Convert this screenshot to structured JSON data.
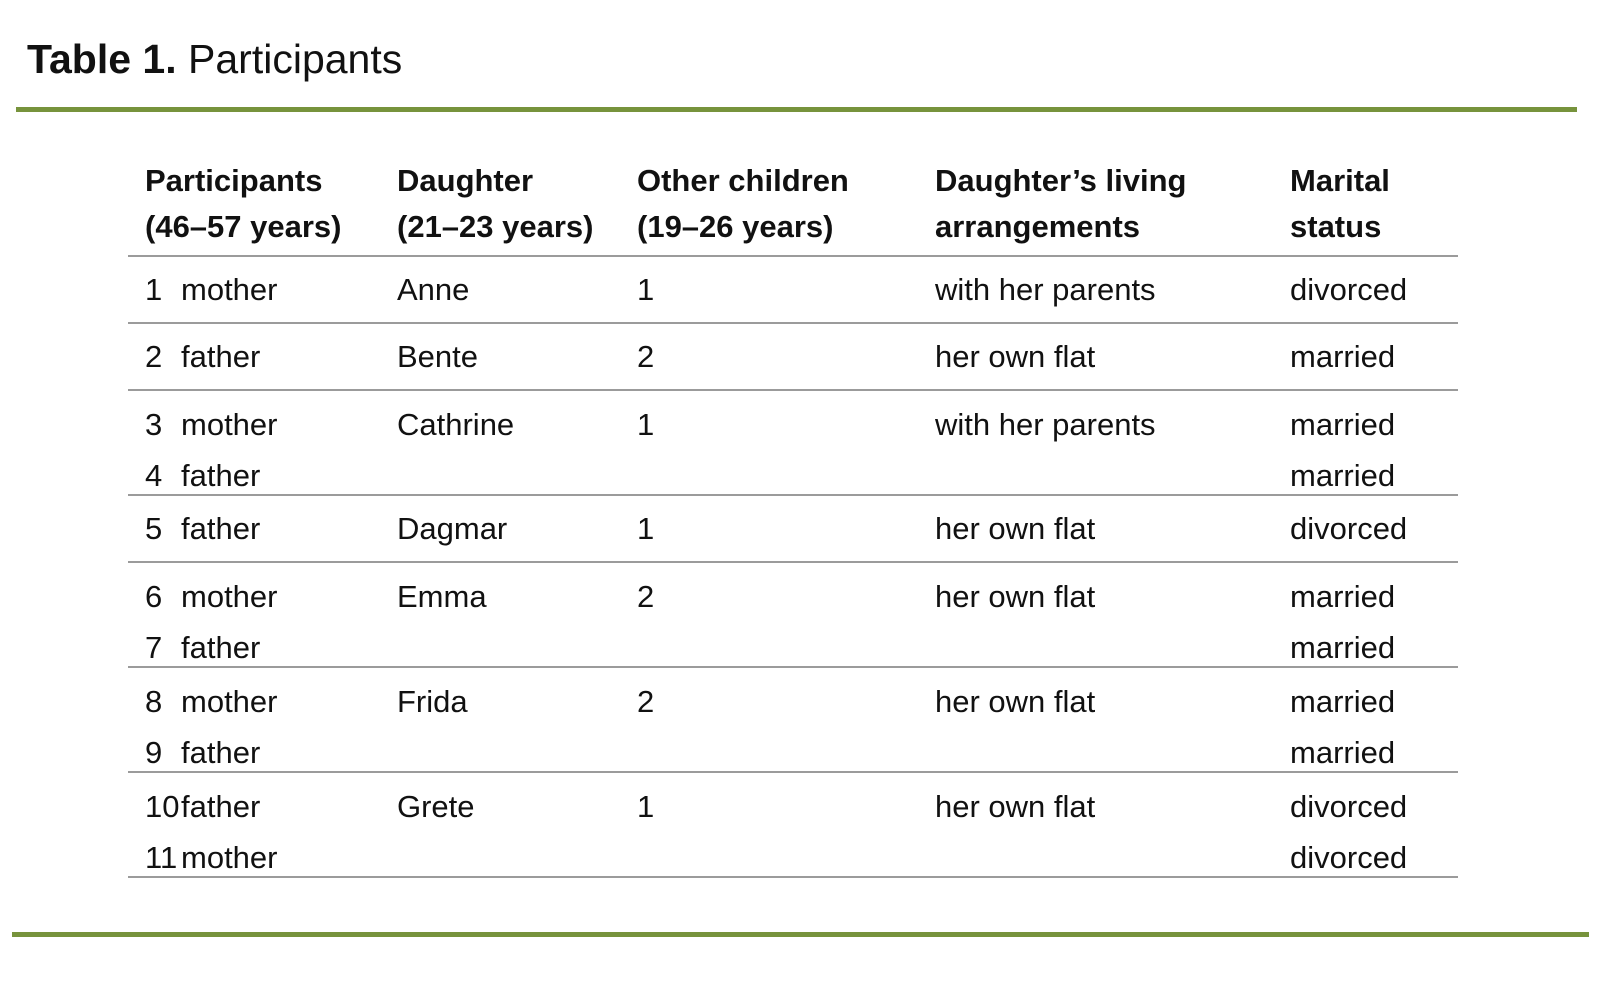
{
  "title": {
    "bold": "Table 1.",
    "rest": " Participants"
  },
  "colors": {
    "accent": "#77933C",
    "grid_line": "#9b9b9b"
  },
  "table": {
    "columns": [
      {
        "line1": "Participants",
        "line2": "(46–57 years)"
      },
      {
        "line1": "Daughter",
        "line2": "(21–23 years)"
      },
      {
        "line1": "Other children",
        "line2": "(19–26 years)"
      },
      {
        "line1": "Daughter’s living",
        "line2": "arrangements"
      },
      {
        "line1": "Marital",
        "line2": "status"
      }
    ],
    "groups": [
      {
        "daughter": "Anne",
        "other_children": "1",
        "living": "with her parents",
        "rows": [
          {
            "num": "1",
            "role": "mother",
            "marital": "divorced"
          }
        ]
      },
      {
        "daughter": "Bente",
        "other_children": "2",
        "living": "her own flat",
        "rows": [
          {
            "num": "2",
            "role": "father",
            "marital": "married"
          }
        ]
      },
      {
        "daughter": "Cathrine",
        "other_children": "1",
        "living": "with her parents",
        "rows": [
          {
            "num": "3",
            "role": "mother",
            "marital": "married"
          },
          {
            "num": "4",
            "role": "father",
            "marital": "married"
          }
        ]
      },
      {
        "daughter": "Dagmar",
        "other_children": "1",
        "living": "her own flat",
        "rows": [
          {
            "num": "5",
            "role": "father",
            "marital": "divorced"
          }
        ]
      },
      {
        "daughter": "Emma",
        "other_children": "2",
        "living": "her own flat",
        "rows": [
          {
            "num": "6",
            "role": "mother",
            "marital": "married"
          },
          {
            "num": "7",
            "role": "father",
            "marital": "married"
          }
        ]
      },
      {
        "daughter": "Frida",
        "other_children": "2",
        "living": "her own flat",
        "rows": [
          {
            "num": "8",
            "role": "mother",
            "marital": "married"
          },
          {
            "num": "9",
            "role": "father",
            "marital": "married"
          }
        ]
      },
      {
        "daughter": "Grete",
        "other_children": "1",
        "living": "her own flat",
        "rows": [
          {
            "num": "10",
            "role": "father",
            "marital": "divorced"
          },
          {
            "num": "11",
            "role": "mother",
            "marital": "divorced"
          }
        ]
      }
    ]
  }
}
